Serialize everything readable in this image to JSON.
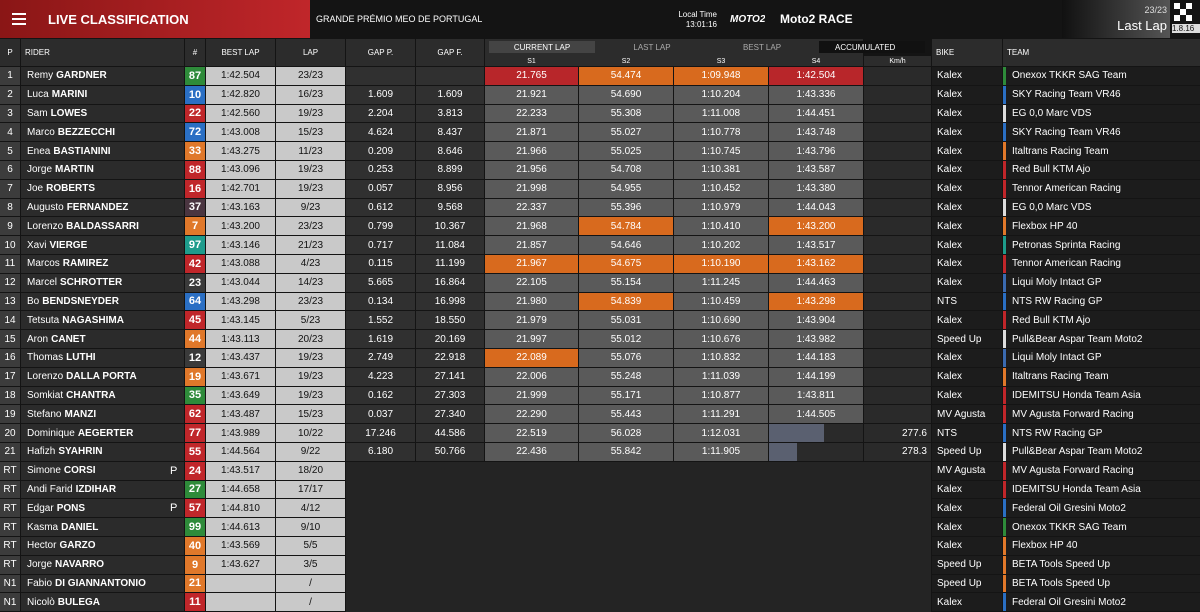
{
  "header": {
    "title": "LIVE CLASSIFICATION",
    "event": "GRANDE PRÉMIO MEO DE PORTUGAL",
    "local_time_label": "Local Time",
    "local_time": "13:01:16",
    "logo": "MOTO2",
    "session": "Moto2 RACE",
    "laps": "23/23",
    "status": "Last Lap",
    "version": "1.8.16"
  },
  "headers": [
    "P",
    "RIDER",
    "#",
    "BEST LAP",
    "LAP",
    "GAP P.",
    "GAP F.",
    "Km/h",
    "BIKE",
    "TEAM"
  ],
  "tabs": [
    "CURRENT LAP",
    "LAST LAP",
    "BEST LAP",
    "ACCUMULATED"
  ],
  "sector_headers": [
    "S1",
    "S2",
    "S3",
    "S4"
  ],
  "rows": [
    {
      "pos": "1",
      "first": "Remy",
      "last": "GARDNER",
      "number": "87",
      "number_color": "#2e8b3a",
      "best_lap": "1:42.504",
      "lap": "23/23",
      "sectors": [
        "21.765",
        "54.474",
        "1:09.948",
        "1:42.504"
      ],
      "highlight": {
        "0": "#b8262a",
        "1": "#d86a1e",
        "2": "#d86a1e",
        "3": "#b8262a"
      },
      "bike": "Kalex",
      "team": "Onexox TKKR SAG Team",
      "team_color": "#2e8b3a"
    },
    {
      "pos": "2",
      "first": "Luca",
      "last": "MARINI",
      "number": "10",
      "number_color": "#2a6fc4",
      "best_lap": "1:42.820",
      "lap": "16/23",
      "gap_p": "1.609",
      "gap_f": "1.609",
      "sectors": [
        "21.921",
        "54.690",
        "1:10.204",
        "1:43.336"
      ],
      "bike": "Kalex",
      "team": "SKY Racing Team VR46",
      "team_color": "#2a6fc4"
    },
    {
      "pos": "3",
      "first": "Sam",
      "last": "LOWES",
      "number": "22",
      "number_color": "#c0262a",
      "best_lap": "1:42.560",
      "lap": "19/23",
      "gap_p": "2.204",
      "gap_f": "3.813",
      "sectors": [
        "22.233",
        "55.308",
        "1:11.008",
        "1:44.451"
      ],
      "bike": "Kalex",
      "team": "EG 0,0 Marc VDS",
      "team_color": "#dddddd"
    },
    {
      "pos": "4",
      "first": "Marco",
      "last": "BEZZECCHI",
      "number": "72",
      "number_color": "#2a6fc4",
      "best_lap": "1:43.008",
      "lap": "15/23",
      "gap_p": "4.624",
      "gap_f": "8.437",
      "sectors": [
        "21.871",
        "55.027",
        "1:10.778",
        "1:43.748"
      ],
      "bike": "Kalex",
      "team": "SKY Racing Team VR46",
      "team_color": "#2a6fc4"
    },
    {
      "pos": "5",
      "first": "Enea",
      "last": "BASTIANINI",
      "number": "33",
      "number_color": "#e0782a",
      "best_lap": "1:43.275",
      "lap": "11/23",
      "gap_p": "0.209",
      "gap_f": "8.646",
      "sectors": [
        "21.966",
        "55.025",
        "1:10.745",
        "1:43.796"
      ],
      "bike": "Kalex",
      "team": "Italtrans Racing Team",
      "team_color": "#e0782a"
    },
    {
      "pos": "6",
      "first": "Jorge",
      "last": "MARTIN",
      "number": "88",
      "number_color": "#c0262a",
      "best_lap": "1:43.096",
      "lap": "19/23",
      "gap_p": "0.253",
      "gap_f": "8.899",
      "sectors": [
        "21.956",
        "54.708",
        "1:10.381",
        "1:43.587"
      ],
      "bike": "Kalex",
      "team": "Red Bull KTM Ajo",
      "team_color": "#c0262a"
    },
    {
      "pos": "7",
      "first": "Joe",
      "last": "ROBERTS",
      "number": "16",
      "number_color": "#c0262a",
      "best_lap": "1:42.701",
      "lap": "19/23",
      "gap_p": "0.057",
      "gap_f": "8.956",
      "sectors": [
        "21.998",
        "54.955",
        "1:10.452",
        "1:43.380"
      ],
      "bike": "Kalex",
      "team": "Tennor American Racing",
      "team_color": "#c0262a"
    },
    {
      "pos": "8",
      "first": "Augusto",
      "last": "FERNANDEZ",
      "number": "37",
      "number_color": "#4a3540",
      "best_lap": "1:43.163",
      "lap": "9/23",
      "gap_p": "0.612",
      "gap_f": "9.568",
      "sectors": [
        "22.337",
        "55.396",
        "1:10.979",
        "1:44.043"
      ],
      "bike": "Kalex",
      "team": "EG 0,0 Marc VDS",
      "team_color": "#dddddd"
    },
    {
      "pos": "9",
      "first": "Lorenzo",
      "last": "BALDASSARRI",
      "number": "7",
      "number_color": "#e0782a",
      "best_lap": "1:43.200",
      "lap": "23/23",
      "gap_p": "0.799",
      "gap_f": "10.367",
      "sectors": [
        "21.968",
        "54.784",
        "1:10.410",
        "1:43.200"
      ],
      "highlight": {
        "1": "#d86a1e",
        "3": "#d86a1e"
      },
      "bike": "Kalex",
      "team": "Flexbox HP 40",
      "team_color": "#e0782a"
    },
    {
      "pos": "10",
      "first": "Xavi",
      "last": "VIERGE",
      "number": "97",
      "number_color": "#1e9c8c",
      "best_lap": "1:43.146",
      "lap": "21/23",
      "gap_p": "0.717",
      "gap_f": "11.084",
      "sectors": [
        "21.857",
        "54.646",
        "1:10.202",
        "1:43.517"
      ],
      "bike": "Kalex",
      "team": "Petronas Sprinta Racing",
      "team_color": "#1e9c8c"
    },
    {
      "pos": "11",
      "first": "Marcos",
      "last": "RAMIREZ",
      "number": "42",
      "number_color": "#c0262a",
      "best_lap": "1:43.088",
      "lap": "4/23",
      "gap_p": "0.115",
      "gap_f": "11.199",
      "sectors": [
        "21.967",
        "54.675",
        "1:10.190",
        "1:43.162"
      ],
      "highlight": {
        "0": "#d86a1e",
        "1": "#d86a1e",
        "2": "#d86a1e",
        "3": "#d86a1e"
      },
      "bike": "Kalex",
      "team": "Tennor American Racing",
      "team_color": "#c0262a"
    },
    {
      "pos": "12",
      "first": "Marcel",
      "last": "SCHROTTER",
      "number": "23",
      "number_color": "#3a3a3a",
      "best_lap": "1:43.044",
      "lap": "14/23",
      "gap_p": "5.665",
      "gap_f": "16.864",
      "sectors": [
        "22.105",
        "55.154",
        "1:11.245",
        "1:44.463"
      ],
      "bike": "Kalex",
      "team": "Liqui Moly Intact GP",
      "team_color": "#3a6ab0"
    },
    {
      "pos": "13",
      "first": "Bo",
      "last": "BENDSNEYDER",
      "number": "64",
      "number_color": "#2a6fc4",
      "best_lap": "1:43.298",
      "lap": "23/23",
      "gap_p": "0.134",
      "gap_f": "16.998",
      "sectors": [
        "21.980",
        "54.839",
        "1:10.459",
        "1:43.298"
      ],
      "highlight": {
        "1": "#d86a1e",
        "3": "#d86a1e"
      },
      "bike": "NTS",
      "team": "NTS RW Racing GP",
      "team_color": "#2a6fc4"
    },
    {
      "pos": "14",
      "first": "Tetsuta",
      "last": "NAGASHIMA",
      "number": "45",
      "number_color": "#c0262a",
      "best_lap": "1:43.145",
      "lap": "5/23",
      "gap_p": "1.552",
      "gap_f": "18.550",
      "sectors": [
        "21.979",
        "55.031",
        "1:10.690",
        "1:43.904"
      ],
      "bike": "Kalex",
      "team": "Red Bull KTM Ajo",
      "team_color": "#c0262a"
    },
    {
      "pos": "15",
      "first": "Aron",
      "last": "CANET",
      "number": "44",
      "number_color": "#e0782a",
      "best_lap": "1:43.113",
      "lap": "20/23",
      "gap_p": "1.619",
      "gap_f": "20.169",
      "sectors": [
        "21.997",
        "55.012",
        "1:10.676",
        "1:43.982"
      ],
      "bike": "Speed Up",
      "team": "Pull&Bear Aspar Team Moto2",
      "team_color": "#dddddd"
    },
    {
      "pos": "16",
      "first": "Thomas",
      "last": "LUTHI",
      "number": "12",
      "number_color": "#3a3a3a",
      "best_lap": "1:43.437",
      "lap": "19/23",
      "gap_p": "2.749",
      "gap_f": "22.918",
      "sectors": [
        "22.089",
        "55.076",
        "1:10.832",
        "1:44.183"
      ],
      "highlight": {
        "0": "#d86a1e"
      },
      "bike": "Kalex",
      "team": "Liqui Moly Intact GP",
      "team_color": "#3a6ab0"
    },
    {
      "pos": "17",
      "first": "Lorenzo",
      "last": "DALLA PORTA",
      "number": "19",
      "number_color": "#e0782a",
      "best_lap": "1:43.671",
      "lap": "19/23",
      "gap_p": "4.223",
      "gap_f": "27.141",
      "sectors": [
        "22.006",
        "55.248",
        "1:11.039",
        "1:44.199"
      ],
      "bike": "Kalex",
      "team": "Italtrans Racing Team",
      "team_color": "#e0782a"
    },
    {
      "pos": "18",
      "first": "Somkiat",
      "last": "CHANTRA",
      "number": "35",
      "number_color": "#2e8b3a",
      "best_lap": "1:43.649",
      "lap": "19/23",
      "gap_p": "0.162",
      "gap_f": "27.303",
      "sectors": [
        "21.999",
        "55.171",
        "1:10.877",
        "1:43.811"
      ],
      "bike": "Kalex",
      "team": "IDEMITSU Honda Team Asia",
      "team_color": "#c0262a"
    },
    {
      "pos": "19",
      "first": "Stefano",
      "last": "MANZI",
      "number": "62",
      "number_color": "#c0262a",
      "best_lap": "1:43.487",
      "lap": "15/23",
      "gap_p": "0.037",
      "gap_f": "27.340",
      "sectors": [
        "22.290",
        "55.443",
        "1:11.291",
        "1:44.505"
      ],
      "bike": "MV Agusta",
      "team": "MV Agusta Forward Racing",
      "team_color": "#c0262a"
    },
    {
      "pos": "20",
      "first": "Dominique",
      "last": "AEGERTER",
      "number": "77",
      "number_color": "#c0262a",
      "best_lap": "1:43.989",
      "lap": "10/22",
      "gap_p": "17.246",
      "gap_f": "44.586",
      "sectors": [
        "22.519",
        "56.028",
        "1:12.031"
      ],
      "progress": 0.58,
      "speed": "277.6",
      "bike": "NTS",
      "team": "NTS RW Racing GP",
      "team_color": "#2a6fc4"
    },
    {
      "pos": "21",
      "first": "Hafizh",
      "last": "SYAHRIN",
      "number": "55",
      "number_color": "#c0262a",
      "best_lap": "1:44.564",
      "lap": "9/22",
      "gap_p": "6.180",
      "gap_f": "50.766",
      "sectors": [
        "22.436",
        "55.842",
        "1:11.905"
      ],
      "progress": 0.3,
      "speed": "278.3",
      "bike": "Speed Up",
      "team": "Pull&Bear Aspar Team Moto2",
      "team_color": "#dddddd"
    },
    {
      "pos": "RT",
      "first": "Simone",
      "last": "CORSI",
      "pit": "P",
      "number": "24",
      "number_color": "#c0262a",
      "best_lap": "1:43.517",
      "lap": "18/20",
      "bike": "MV Agusta",
      "team": "MV Agusta Forward Racing",
      "team_color": "#c0262a"
    },
    {
      "pos": "RT",
      "first": "Andi Farid",
      "last": "IZDIHAR",
      "number": "27",
      "number_color": "#2e8b3a",
      "best_lap": "1:44.658",
      "lap": "17/17",
      "bike": "Kalex",
      "team": "IDEMITSU Honda Team Asia",
      "team_color": "#c0262a"
    },
    {
      "pos": "RT",
      "first": "Edgar",
      "last": "PONS",
      "pit": "P",
      "number": "57",
      "number_color": "#c0262a",
      "best_lap": "1:44.810",
      "lap": "4/12",
      "bike": "Kalex",
      "team": "Federal Oil Gresini Moto2",
      "team_color": "#2a6fc4"
    },
    {
      "pos": "RT",
      "first": "Kasma",
      "last": "DANIEL",
      "number": "99",
      "number_color": "#2e8b3a",
      "best_lap": "1:44.613",
      "lap": "9/10",
      "bike": "Kalex",
      "team": "Onexox TKKR SAG Team",
      "team_color": "#2e8b3a"
    },
    {
      "pos": "RT",
      "first": "Hector",
      "last": "GARZO",
      "number": "40",
      "number_color": "#e0782a",
      "best_lap": "1:43.569",
      "lap": "5/5",
      "bike": "Kalex",
      "team": "Flexbox HP 40",
      "team_color": "#e0782a"
    },
    {
      "pos": "RT",
      "first": "Jorge",
      "last": "NAVARRO",
      "number": "9",
      "number_color": "#e0782a",
      "best_lap": "1:43.627",
      "lap": "3/5",
      "bike": "Speed Up",
      "team": "BETA Tools Speed Up",
      "team_color": "#e0782a"
    },
    {
      "pos": "N1",
      "first": "Fabio",
      "last": "DI GIANNANTONIO",
      "number": "21",
      "number_color": "#e0782a",
      "lap": "/",
      "bike": "Speed Up",
      "team": "BETA Tools Speed Up",
      "team_color": "#e0782a"
    },
    {
      "pos": "N1",
      "first": "Nicolò",
      "last": "BULEGA",
      "number": "11",
      "number_color": "#c0262a",
      "lap": "/",
      "bike": "Kalex",
      "team": "Federal Oil Gresini Moto2",
      "team_color": "#2a6fc4"
    }
  ]
}
